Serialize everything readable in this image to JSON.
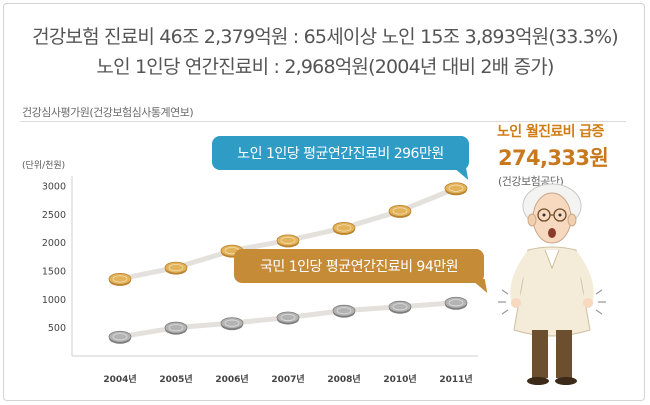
{
  "headline": {
    "line1": "건강보험 진료비 46조 2,379억원 : 65세이상 노인 15조 3,893억원(33.3%)",
    "line2": "노인 1인당 연간진료비 : 2,968억원(2004년 대비 2배 증가)"
  },
  "source_label": "건강심사평가원(건강보험심사통계연보)",
  "side": {
    "title": "노인 월진료비 급증",
    "value": "274,333원",
    "source": "(건강보험공단)"
  },
  "chart_data": {
    "type": "line",
    "unit_label": "(단위/천원)",
    "categories": [
      "2004년",
      "2005년",
      "2006년",
      "2007년",
      "2008년",
      "2010년",
      "2011년"
    ],
    "ylim": [
      0,
      3000
    ],
    "yticks": [
      500,
      1000,
      1500,
      2000,
      2500,
      3000
    ],
    "grid": false,
    "series": [
      {
        "values": [
          1360,
          1560,
          1860,
          2040,
          2260,
          2560,
          2960
        ],
        "color": "#d9a94a"
      },
      {
        "values": [
          340,
          500,
          580,
          680,
          800,
          870,
          940
        ],
        "color": "#9a9a9a"
      }
    ],
    "callouts": [
      {
        "text": "노인 1인당 평균연간진료비 296만원",
        "color": "#2f9cc6"
      },
      {
        "text": "국민 1인당 평균연간진료비 94만원",
        "color": "#c58b37"
      }
    ]
  }
}
